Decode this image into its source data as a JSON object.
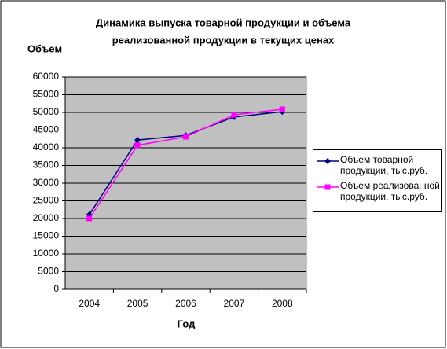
{
  "chart_data": {
    "type": "line",
    "title": [
      "Динамика выпуска товарной продукции и объема",
      "реализованной продукции в текущих ценах"
    ],
    "y_label": "Объем",
    "x_label": "Год",
    "categories": [
      "2004",
      "2005",
      "2006",
      "2007",
      "2008"
    ],
    "series": [
      {
        "name": "Объем товарной продукции, тыс.руб.",
        "color": "#000080",
        "marker": "diamond",
        "values": [
          21100,
          42200,
          43500,
          48700,
          50200
        ]
      },
      {
        "name": "Объем реализованной продукции, тыс.руб.",
        "color": "#ff00ff",
        "marker": "square",
        "values": [
          20000,
          40700,
          43100,
          49300,
          50900
        ]
      }
    ],
    "ylim": [
      0,
      60000
    ],
    "yticks": [
      0,
      5000,
      10000,
      15000,
      20000,
      25000,
      30000,
      35000,
      40000,
      45000,
      50000,
      55000,
      60000
    ],
    "grid": true,
    "plot_background": "#c0c0c0",
    "legend": "right"
  }
}
